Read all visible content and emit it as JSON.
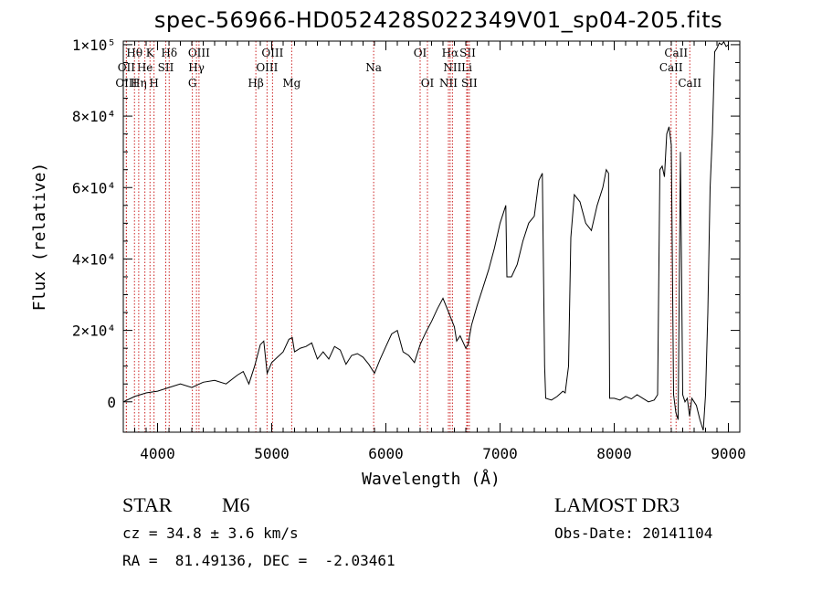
{
  "title": "spec-56966-HD052428S022349V01_sp04-205.fits",
  "info": {
    "object_class": "STAR",
    "subclass": "M6",
    "cz": "cz = 34.8 ± 3.6 km/s",
    "coords": "RA =  81.49136, DEC =  -2.03461",
    "survey": "LAMOST DR3",
    "obs_date": "Obs-Date: 20141104"
  },
  "chart_data": {
    "type": "line",
    "title": "spec-56966-HD052428S022349V01_sp04-205.fits",
    "xlabel": "Wavelength (Å)",
    "ylabel": "Flux (relative)",
    "xlim": [
      3700,
      9100
    ],
    "ylim": [
      -8500,
      101000
    ],
    "x_ticks": [
      4000,
      5000,
      6000,
      7000,
      8000,
      9000
    ],
    "x_tick_labels": [
      "4000",
      "5000",
      "6000",
      "7000",
      "8000",
      "9000"
    ],
    "y_ticks": [
      0,
      20000,
      40000,
      60000,
      80000,
      100000
    ],
    "y_tick_labels": [
      "0",
      "2×10⁴",
      "4×10⁴",
      "6×10⁴",
      "8×10⁴",
      "1×10⁵"
    ],
    "grid": false,
    "series": [
      {
        "x": [
          3700,
          3800,
          3900,
          4000,
          4100,
          4200,
          4300,
          4400,
          4500,
          4600,
          4700,
          4750,
          4800,
          4850,
          4900,
          4930,
          4960,
          5000,
          5050,
          5100,
          5150,
          5180,
          5200,
          5250,
          5300,
          5350,
          5400,
          5450,
          5500,
          5550,
          5600,
          5650,
          5700,
          5750,
          5800,
          5850,
          5900,
          5950,
          6000,
          6050,
          6100,
          6150,
          6200,
          6250,
          6300,
          6350,
          6400,
          6450,
          6500,
          6550,
          6600,
          6620,
          6650,
          6700,
          6720,
          6750,
          6800,
          6850,
          6900,
          6950,
          7000,
          7050,
          7060,
          7100,
          7150,
          7200,
          7250,
          7300,
          7340,
          7370,
          7390,
          7400,
          7450,
          7500,
          7550,
          7570,
          7600,
          7620,
          7650,
          7700,
          7750,
          7800,
          7850,
          7900,
          7930,
          7950,
          7960,
          8000,
          8050,
          8100,
          8150,
          8200,
          8250,
          8300,
          8350,
          8380,
          8400,
          8420,
          8440,
          8460,
          8480,
          8500,
          8520,
          8540,
          8560,
          8580,
          8600,
          8620,
          8640,
          8660,
          8680,
          8700,
          8720,
          8750,
          8780,
          8800,
          8820,
          8840,
          8860,
          8880,
          8900,
          8920,
          8940,
          8960,
          8980,
          9000
        ],
        "y": [
          0,
          1500,
          2500,
          3000,
          4000,
          5000,
          4000,
          5500,
          6000,
          5000,
          7500,
          8500,
          5000,
          10000,
          16000,
          17000,
          8000,
          11000,
          12500,
          14000,
          17500,
          18000,
          14000,
          15000,
          15500,
          16500,
          12000,
          14000,
          12000,
          15500,
          14500,
          10500,
          13000,
          13500,
          12500,
          10500,
          8000,
          12000,
          15500,
          19000,
          20000,
          14000,
          13000,
          11000,
          16000,
          19500,
          22500,
          26000,
          29000,
          25000,
          21000,
          17000,
          18500,
          15000,
          16000,
          21500,
          27000,
          32000,
          37000,
          43000,
          50000,
          55000,
          35000,
          35000,
          38500,
          45000,
          50000,
          52000,
          62000,
          64000,
          10000,
          1000,
          500,
          1500,
          3000,
          2500,
          10000,
          46000,
          58000,
          56000,
          50000,
          48000,
          55000,
          60000,
          65000,
          64000,
          1000,
          1000,
          500,
          1500,
          800,
          2000,
          1000,
          0,
          500,
          2000,
          65000,
          66000,
          63000,
          75000,
          77000,
          72000,
          2000,
          -3000,
          -5000,
          70000,
          2000,
          0,
          1000,
          -4000,
          1000,
          0,
          -1000,
          -5000,
          -8000,
          2000,
          25000,
          60000,
          75000,
          98000,
          99000,
          100500,
          100000,
          100800,
          99500,
          100000
        ]
      }
    ],
    "line_markers": [
      {
        "label": "Hθ",
        "x": 3798,
        "row": 1
      },
      {
        "label": "OII",
        "x": 3727,
        "row": 2
      },
      {
        "label": "OIII",
        "x": 3727,
        "row": 3
      },
      {
        "label": "K",
        "x": 3934,
        "row": 1
      },
      {
        "label": "He",
        "x": 3889,
        "row": 2
      },
      {
        "label": "Hη",
        "x": 3835,
        "row": 3
      },
      {
        "label": "SII",
        "x": 4072,
        "row": 2
      },
      {
        "label": "H",
        "x": 3969,
        "row": 3
      },
      {
        "label": "Hδ",
        "x": 4102,
        "row": 1
      },
      {
        "label": "OIII",
        "x": 4363,
        "row": 1
      },
      {
        "label": "Hγ",
        "x": 4341,
        "row": 2
      },
      {
        "label": "G",
        "x": 4305,
        "row": 3
      },
      {
        "label": "OIII",
        "x": 5007,
        "row": 1
      },
      {
        "label": "OIII",
        "x": 4959,
        "row": 2
      },
      {
        "label": "Hβ",
        "x": 4861,
        "row": 3
      },
      {
        "label": "Mg",
        "x": 5175,
        "row": 3
      },
      {
        "label": "Na",
        "x": 5893,
        "row": 2
      },
      {
        "label": "OI",
        "x": 6300,
        "row": 1
      },
      {
        "label": "OI",
        "x": 6364,
        "row": 3
      },
      {
        "label": "Hα",
        "x": 6563,
        "row": 1
      },
      {
        "label": "SII",
        "x": 6716,
        "row": 1
      },
      {
        "label": "NII",
        "x": 6583,
        "row": 2
      },
      {
        "label": "Li",
        "x": 6708,
        "row": 2
      },
      {
        "label": "NII",
        "x": 6548,
        "row": 3
      },
      {
        "label": "SII",
        "x": 6731,
        "row": 3
      },
      {
        "label": "CaII",
        "x": 8542,
        "row": 1
      },
      {
        "label": "CaII",
        "x": 8498,
        "row": 2
      },
      {
        "label": "CaII",
        "x": 8662,
        "row": 3
      }
    ]
  }
}
